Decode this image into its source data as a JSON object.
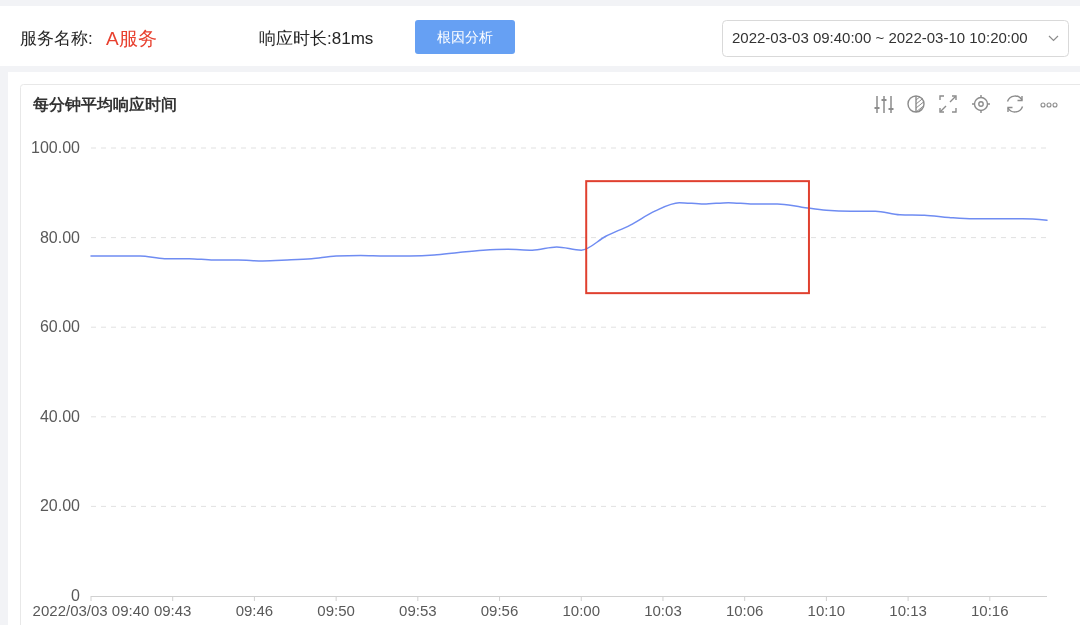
{
  "chart_data": {
    "type": "line",
    "title": "每分钟平均响应时间",
    "annotations": [
      "服务名称:",
      "A服务",
      "响应时长:81ms",
      "根因分析",
      "2022-03-03 09:40:00 ~ 2022-03-10 10:20:00"
    ],
    "x": [
      "2022-03-03T09:40",
      "2022-03-03T09:41",
      "2022-03-03T09:42",
      "2022-03-03T09:43",
      "2022-03-03T09:44",
      "2022-03-03T09:45",
      "2022-03-03T09:46",
      "2022-03-03T09:47",
      "2022-03-03T09:48",
      "2022-03-03T09:49",
      "2022-03-03T09:50",
      "2022-03-03T09:51",
      "2022-03-03T09:52",
      "2022-03-03T09:53",
      "2022-03-03T09:54",
      "2022-03-03T09:55",
      "2022-03-03T09:56",
      "2022-03-03T09:57",
      "2022-03-03T09:58",
      "2022-03-03T09:59",
      "2022-03-03T10:00",
      "2022-03-03T10:01",
      "2022-03-03T10:02",
      "2022-03-03T10:03",
      "2022-03-03T10:04",
      "2022-03-03T10:05",
      "2022-03-03T10:06",
      "2022-03-03T10:07",
      "2022-03-03T10:08",
      "2022-03-03T10:09",
      "2022-03-03T10:10",
      "2022-03-03T10:11",
      "2022-03-03T10:12",
      "2022-03-03T10:13",
      "2022-03-03T10:14",
      "2022-03-03T10:15",
      "2022-03-03T10:16",
      "2022-03-03T10:17",
      "2022-03-03T10:18",
      "2022-03-03T10:19"
    ],
    "values": [
      75.9,
      75.9,
      75.9,
      75.3,
      75.3,
      75.0,
      75.0,
      74.8,
      75.0,
      75.3,
      75.9,
      76.0,
      75.9,
      75.9,
      76.1,
      76.7,
      77.2,
      77.4,
      77.2,
      77.9,
      77.2,
      80.3,
      82.8,
      85.9,
      87.8,
      87.5,
      87.8,
      87.5,
      87.5,
      86.8,
      86.1,
      85.9,
      85.9,
      85.1,
      85.0,
      84.5,
      84.2,
      84.2,
      84.2,
      83.9
    ],
    "color": "#6f8cf2",
    "line_style": "solid",
    "xlim": [
      "2022-03-03T09:40",
      "2022-03-03T10:19"
    ],
    "xticks": [
      {
        "value": "2022-03-03T09:40:00",
        "label": "2022/03/03 09:40"
      },
      {
        "value": "2022-03-03T09:43:20",
        "label": "09:43"
      },
      {
        "value": "2022-03-03T09:46:40",
        "label": "09:46"
      },
      {
        "value": "2022-03-03T09:50:00",
        "label": "09:50"
      },
      {
        "value": "2022-03-03T09:53:20",
        "label": "09:53"
      },
      {
        "value": "2022-03-03T09:56:40",
        "label": "09:56"
      },
      {
        "value": "2022-03-03T10:00:00",
        "label": "10:00"
      },
      {
        "value": "2022-03-03T10:03:20",
        "label": "10:03"
      },
      {
        "value": "2022-03-03T10:06:40",
        "label": "10:06"
      },
      {
        "value": "2022-03-03T10:10:00",
        "label": "10:10"
      },
      {
        "value": "2022-03-03T10:13:20",
        "label": "10:13"
      },
      {
        "value": "2022-03-03T10:16:40",
        "label": "10:16"
      }
    ],
    "ylim": [
      0,
      100
    ],
    "yticks": [
      0,
      {
        "value": 20,
        "label": "20.00"
      },
      {
        "value": 40,
        "label": "40.00"
      },
      {
        "value": 60,
        "label": "60.00"
      },
      {
        "value": 80,
        "label": "80.00"
      },
      {
        "value": 100,
        "label": "100.00"
      }
    ],
    "grid": "y"
  }
}
